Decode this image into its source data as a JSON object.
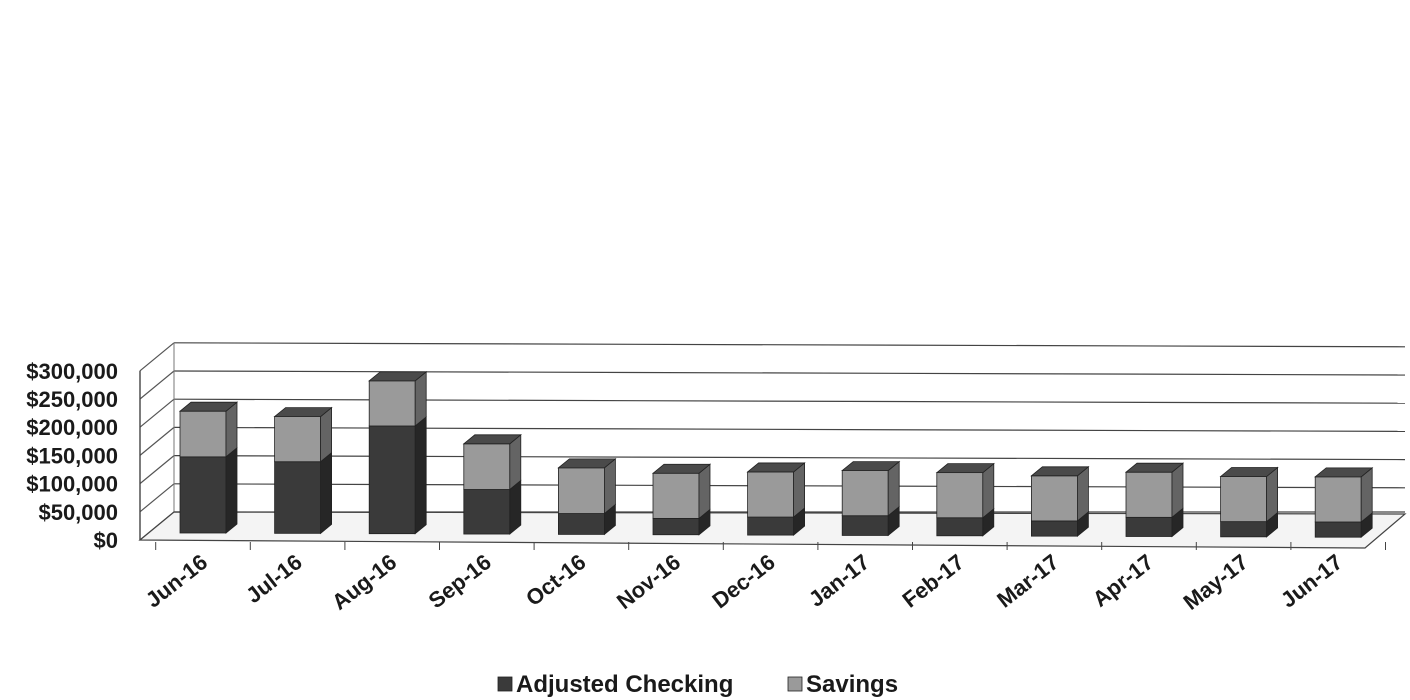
{
  "chart_data": {
    "type": "bar",
    "stacked": true,
    "three_d": true,
    "categories": [
      "Jun-16",
      "Jul-16",
      "Aug-16",
      "Sep-16",
      "Oct-16",
      "Nov-16",
      "Dec-16",
      "Jan-17",
      "Feb-17",
      "Mar-17",
      "Apr-17",
      "May-17",
      "Jun-17"
    ],
    "series": [
      {
        "name": "Adjusted Checking",
        "color": "#3a3a3a",
        "values": [
          135000,
          127000,
          191000,
          79000,
          37000,
          29000,
          32000,
          35000,
          32000,
          27000,
          34000,
          27000,
          27000
        ]
      },
      {
        "name": "Savings",
        "color": "#9a9a9a",
        "values": [
          81000,
          80000,
          80000,
          81000,
          81000,
          80000,
          80000,
          80000,
          80000,
          80000,
          80000,
          80000,
          80000
        ]
      }
    ],
    "y_ticks": [
      "$0",
      "$50,000",
      "$100,000",
      "$150,000",
      "$200,000",
      "$250,000",
      "$300,000"
    ],
    "ylim": [
      0,
      300000
    ],
    "grid": true,
    "legend_position": "bottom"
  }
}
